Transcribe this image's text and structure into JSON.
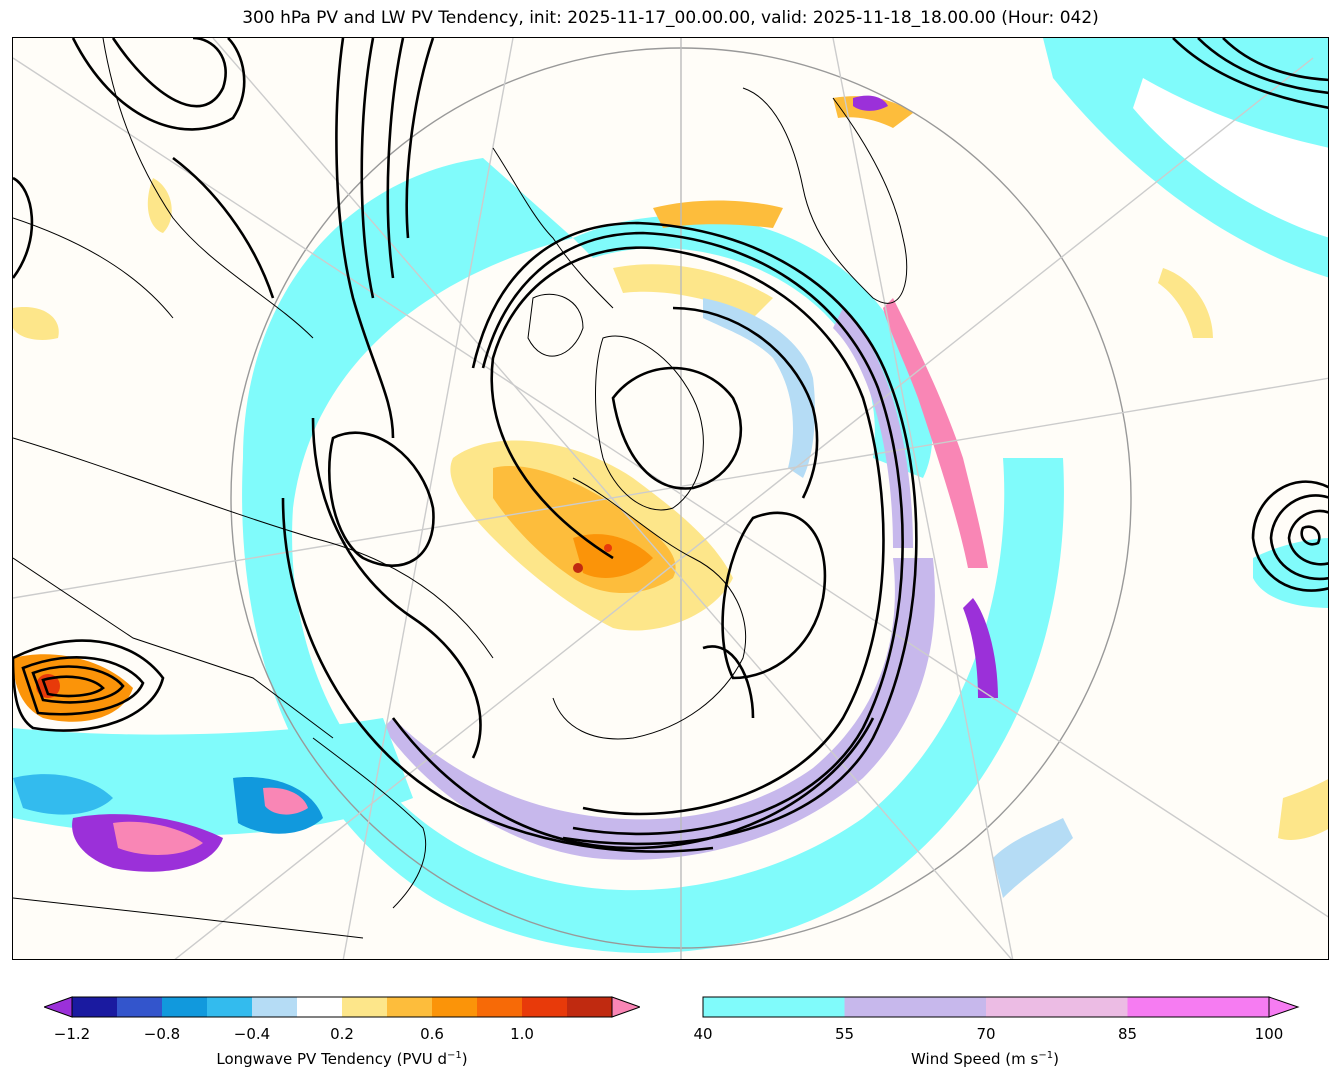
{
  "title": "300 hPa PV and LW PV Tendency, init: 2025-11-17_00.00.00, valid: 2025-11-18_18.00.00 (Hour: 042)",
  "colorbar_pv": {
    "label": "Longwave PV Tendency (PVU d",
    "label_sup": "−1",
    "label_end": ")",
    "ticks": [
      "−1.2",
      "−0.8",
      "−0.4",
      "0.2",
      "0.6",
      "1.0"
    ],
    "colors": [
      "#1a1aa0",
      "#3355cc",
      "#1199dd",
      "#33bbee",
      "#b5dcf5",
      "#ffffff",
      "#fde68a",
      "#fdbd3c",
      "#fb9409",
      "#f76a07",
      "#e83a0a",
      "#c02a10"
    ],
    "under_color": "#9b30d9",
    "over_color": "#f986b5"
  },
  "colorbar_wind": {
    "label": "Wind Speed (m s",
    "label_sup": "−1",
    "label_end": ")",
    "ticks": [
      "40",
      "55",
      "70",
      "85",
      "100"
    ],
    "colors": [
      "#80fbfb",
      "#c7b8ec",
      "#ecbce4",
      "#f67cf2"
    ]
  },
  "map": {
    "jet_color": "#80fbfb",
    "jet_core_color": "#c7b8ec",
    "contour_color": "#000000"
  }
}
